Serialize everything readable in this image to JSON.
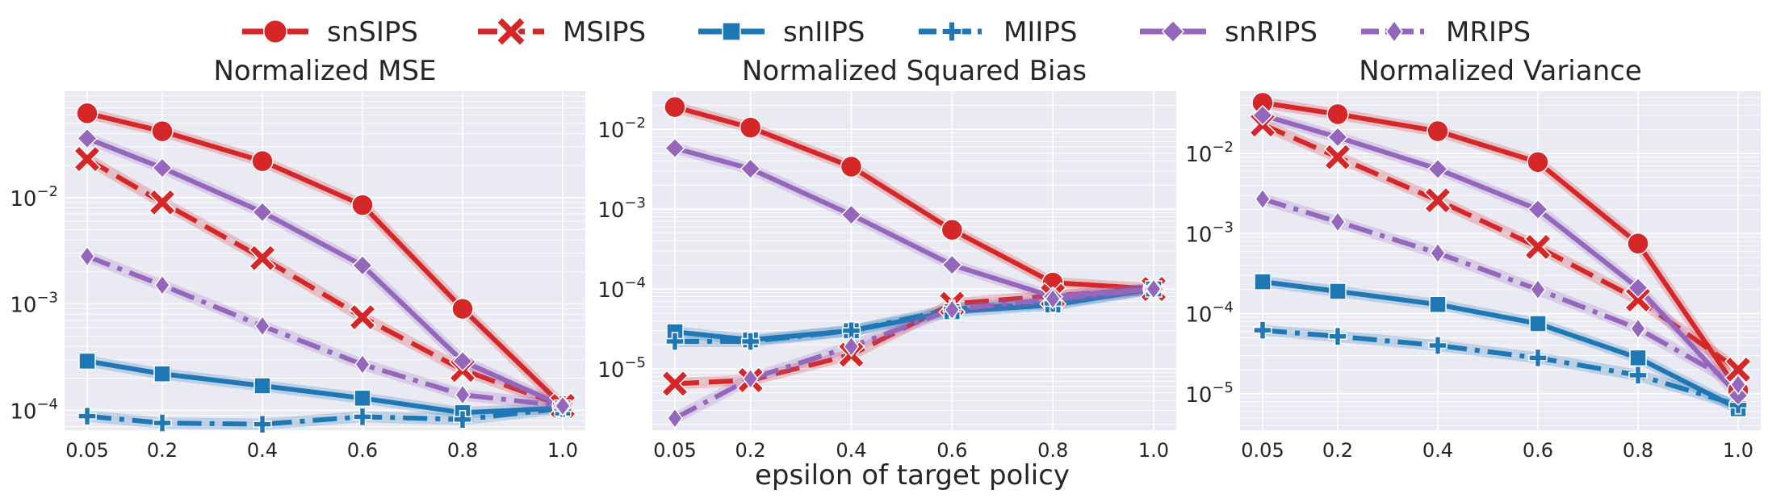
{
  "figure": {
    "xlabel": "epsilon of target policy"
  },
  "legend": [
    {
      "label": "snSIPS",
      "color": "#d62728",
      "dash": "solid",
      "marker": "circle"
    },
    {
      "label": "MSIPS",
      "color": "#d62728",
      "dash": "dash",
      "marker": "x"
    },
    {
      "label": "snIIPS",
      "color": "#1f77b4",
      "dash": "solid",
      "marker": "square"
    },
    {
      "label": "MIIPS",
      "color": "#1f77b4",
      "dash": "dashdot",
      "marker": "plus"
    },
    {
      "label": "snRIPS",
      "color": "#9467bd",
      "dash": "solid",
      "marker": "diamond"
    },
    {
      "label": "MRIPS",
      "color": "#9467bd",
      "dash": "dashdot",
      "marker": "thin-diamond"
    }
  ],
  "chart_data": [
    {
      "type": "line",
      "title": "Normalized MSE",
      "xlabel": "",
      "ylabel": "",
      "yscale": "log",
      "ylim": [
        6.5e-05,
        0.1
      ],
      "x": [
        0.05,
        0.2,
        0.4,
        0.6,
        0.8,
        1.0
      ],
      "x_ticks": [
        "0.05",
        "0.2",
        "0.4",
        "0.6",
        "0.8",
        "1.0"
      ],
      "y_ticks": [
        {
          "value": 0.0001,
          "base": "10",
          "exp": "−4"
        },
        {
          "value": 0.001,
          "base": "10",
          "exp": "−3"
        },
        {
          "value": 0.01,
          "base": "10",
          "exp": "−2"
        }
      ],
      "grid": true,
      "series": [
        {
          "name": "snSIPS",
          "values": [
            0.062,
            0.042,
            0.022,
            0.0085,
            0.0009,
            0.00011
          ]
        },
        {
          "name": "MSIPS",
          "values": [
            0.023,
            0.009,
            0.0027,
            0.00075,
            0.00024,
            0.00011
          ]
        },
        {
          "name": "snIIPS",
          "values": [
            0.00029,
            0.00022,
            0.00017,
            0.00013,
            9.5e-05,
            0.000105
          ]
        },
        {
          "name": "MIIPS",
          "values": [
            8.8e-05,
            7.6e-05,
            7.4e-05,
            8.7e-05,
            8.2e-05,
            0.000104
          ]
        },
        {
          "name": "snRIPS",
          "values": [
            0.036,
            0.019,
            0.0073,
            0.0023,
            0.00029,
            0.00011
          ]
        },
        {
          "name": "MRIPS",
          "values": [
            0.0028,
            0.0015,
            0.00062,
            0.00027,
            0.00014,
            0.00011
          ]
        }
      ]
    },
    {
      "type": "line",
      "title": "Normalized Squared Bias",
      "xlabel": "",
      "ylabel": "",
      "yscale": "log",
      "ylim": [
        1.7e-06,
        0.03
      ],
      "x": [
        0.05,
        0.2,
        0.4,
        0.6,
        0.8,
        1.0
      ],
      "x_ticks": [
        "0.05",
        "0.2",
        "0.4",
        "0.6",
        "0.8",
        "1.0"
      ],
      "y_ticks": [
        {
          "value": 1e-05,
          "base": "10",
          "exp": "−5"
        },
        {
          "value": 0.0001,
          "base": "10",
          "exp": "−4"
        },
        {
          "value": 0.001,
          "base": "10",
          "exp": "−3"
        },
        {
          "value": 0.01,
          "base": "10",
          "exp": "−2"
        }
      ],
      "grid": true,
      "series": [
        {
          "name": "snSIPS",
          "values": [
            0.019,
            0.0105,
            0.0034,
            0.00055,
            0.00012,
            0.0001
          ]
        },
        {
          "name": "MSIPS",
          "values": [
            6.5e-06,
            7.2e-06,
            1.5e-05,
            6.5e-05,
            8.2e-05,
            0.0001
          ]
        },
        {
          "name": "snIIPS",
          "values": [
            2.9e-05,
            2.3e-05,
            3e-05,
            5.2e-05,
            6.3e-05,
            0.0001
          ]
        },
        {
          "name": "MIIPS",
          "values": [
            2.2e-05,
            2.2e-05,
            3e-05,
            5.6e-05,
            6.6e-05,
            0.0001
          ]
        },
        {
          "name": "snRIPS",
          "values": [
            0.0058,
            0.0032,
            0.00085,
            0.0002,
            8e-05,
            0.0001
          ]
        },
        {
          "name": "MRIPS",
          "values": [
            2.4e-06,
            7.5e-06,
            1.9e-05,
            5.5e-05,
            7.5e-05,
            0.0001
          ]
        }
      ]
    },
    {
      "type": "line",
      "title": "Normalized Variance",
      "xlabel": "",
      "ylabel": "",
      "yscale": "log",
      "ylim": [
        3.5e-06,
        0.06
      ],
      "x": [
        0.05,
        0.2,
        0.4,
        0.6,
        0.8,
        1.0
      ],
      "x_ticks": [
        "0.05",
        "0.2",
        "0.4",
        "0.6",
        "0.8",
        "1.0"
      ],
      "y_ticks": [
        {
          "value": 1e-05,
          "base": "10",
          "exp": "−5"
        },
        {
          "value": 0.0001,
          "base": "10",
          "exp": "−4"
        },
        {
          "value": 0.001,
          "base": "10",
          "exp": "−3"
        },
        {
          "value": 0.01,
          "base": "10",
          "exp": "−2"
        }
      ],
      "grid": true,
      "series": [
        {
          "name": "snSIPS",
          "values": [
            0.043,
            0.031,
            0.019,
            0.0078,
            0.00075,
            1.1e-05
          ]
        },
        {
          "name": "MSIPS",
          "values": [
            0.023,
            0.009,
            0.0026,
            0.00068,
            0.00015,
            2e-05
          ]
        },
        {
          "name": "snIIPS",
          "values": [
            0.00025,
            0.00019,
            0.00013,
            7.5e-05,
            2.8e-05,
            6.5e-06
          ]
        },
        {
          "name": "MIIPS",
          "values": [
            6.2e-05,
            5.2e-05,
            4e-05,
            2.8e-05,
            1.7e-05,
            7.2e-06
          ]
        },
        {
          "name": "snRIPS",
          "values": [
            0.03,
            0.016,
            0.0064,
            0.002,
            0.00021,
            9.5e-06
          ]
        },
        {
          "name": "MRIPS",
          "values": [
            0.0027,
            0.0014,
            0.00057,
            0.0002,
            6.5e-05,
            1.3e-05
          ]
        }
      ]
    }
  ]
}
